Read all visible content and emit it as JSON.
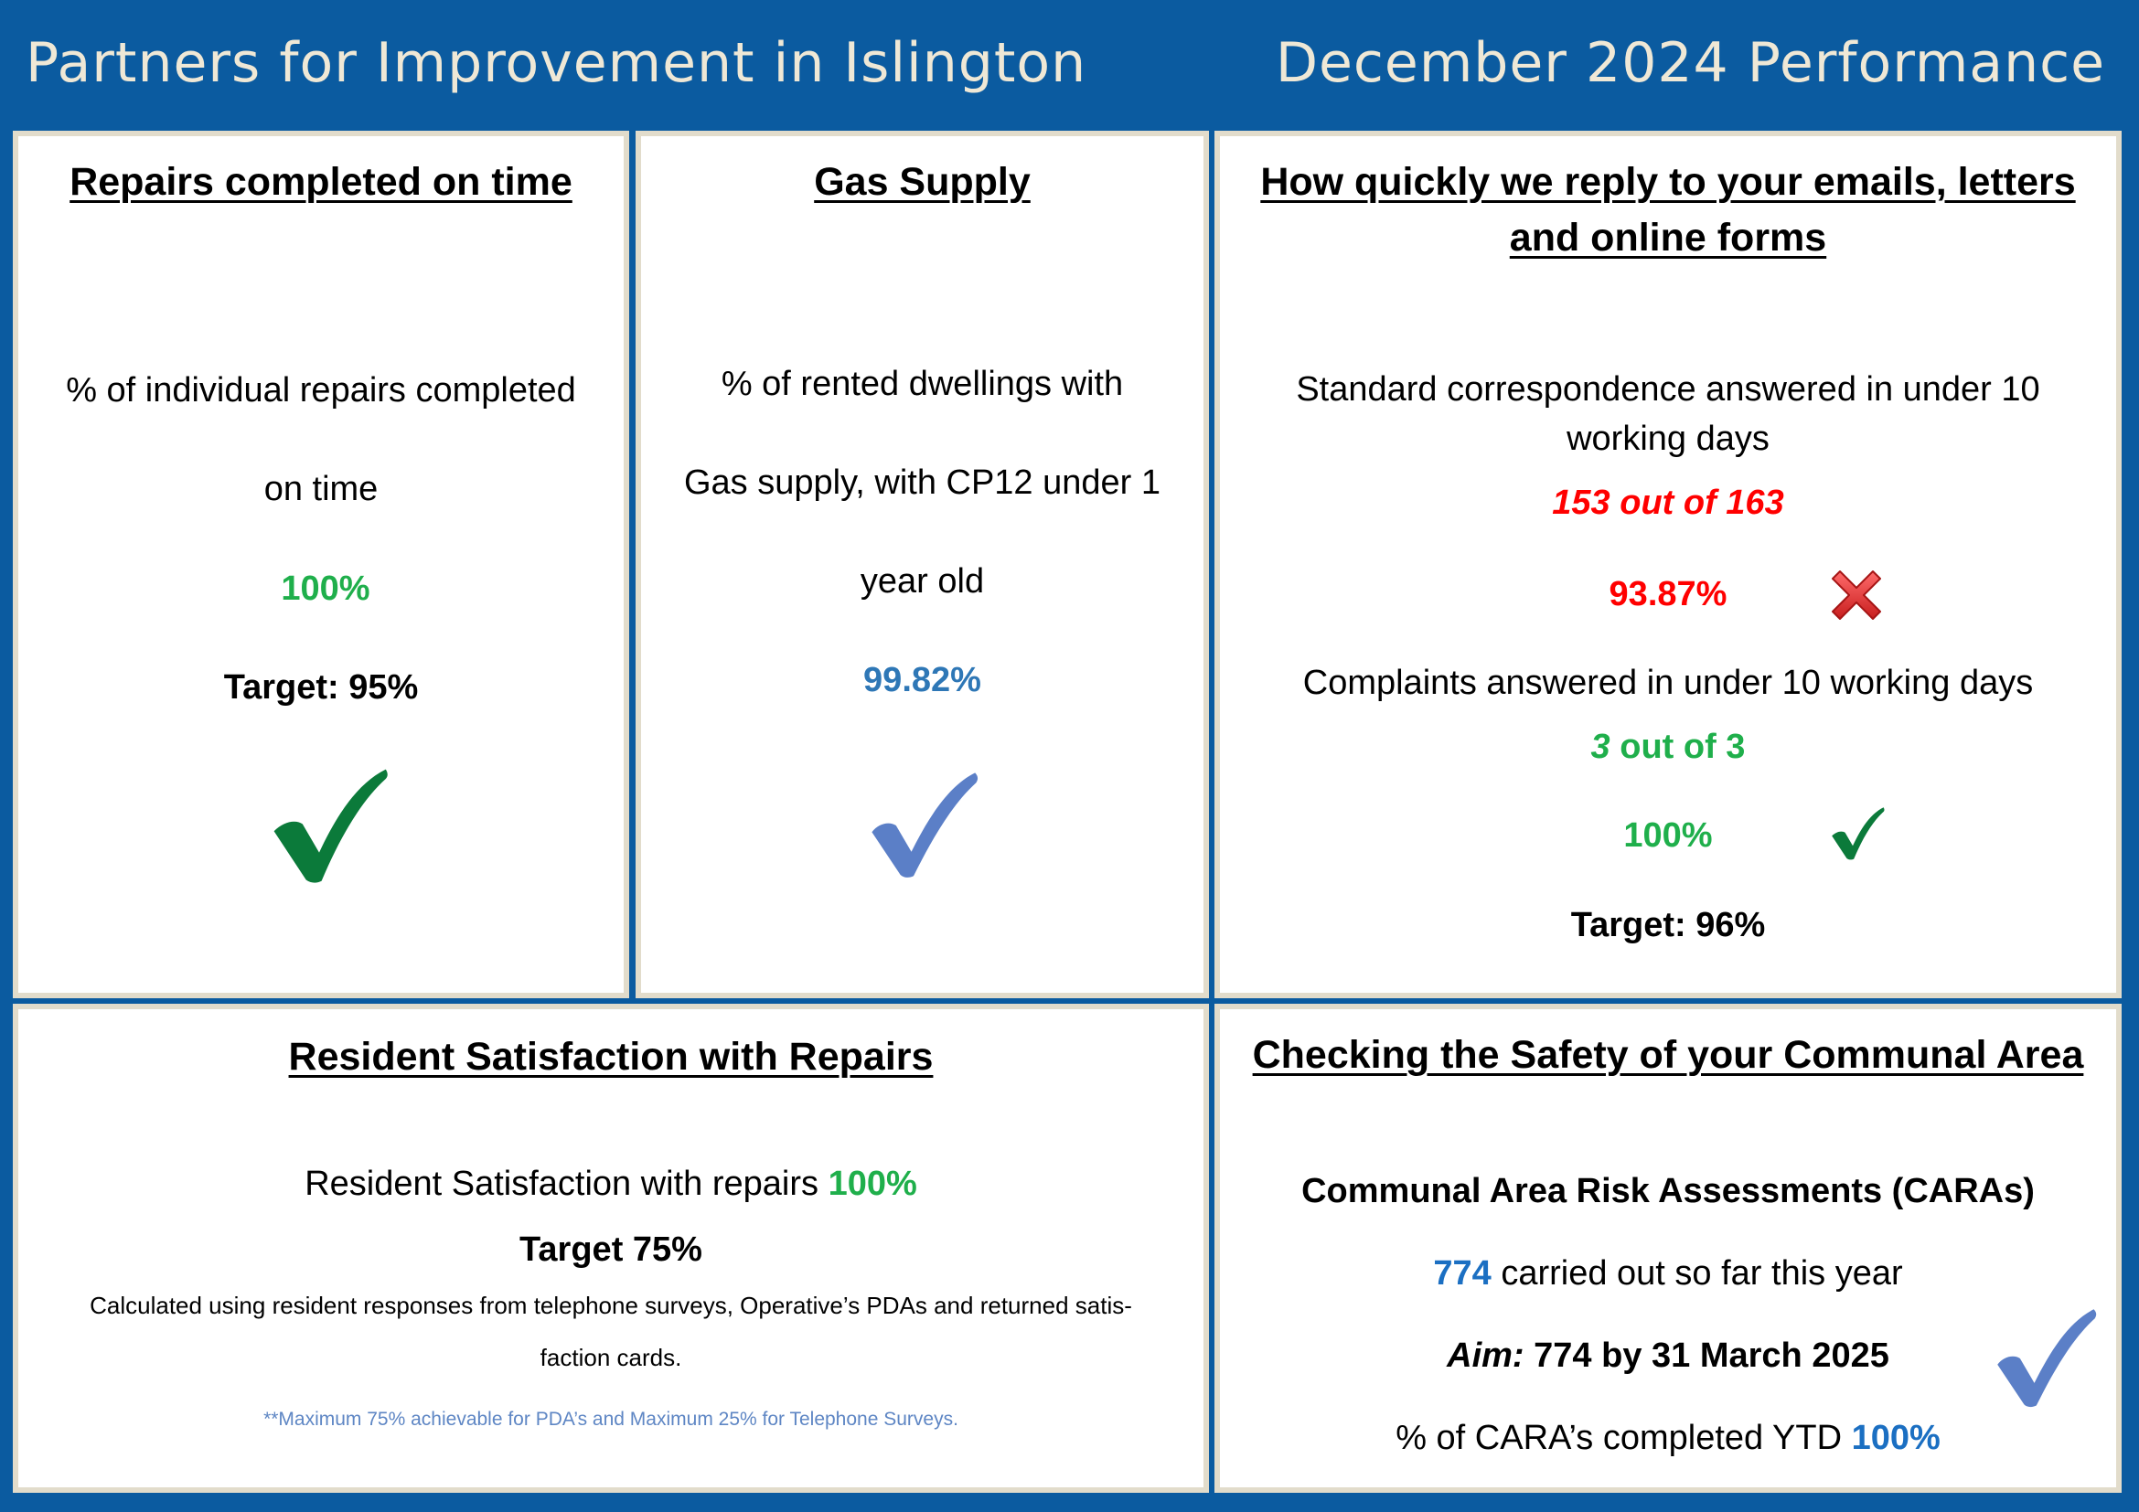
{
  "header": {
    "title": "Partners for Improvement in Islington",
    "period": "December 2024 Performance"
  },
  "colors": {
    "background": "#0b5ba0",
    "panel_border": "#e2dccb",
    "green": "#1faf4b",
    "blue": "#2e77b6",
    "red": "#ff0000"
  },
  "repairs": {
    "title": "Repairs completed on time",
    "desc_line1": "% of  individual repairs completed",
    "desc_line2": "on time",
    "value": "100%",
    "target": "Target: 95%",
    "status_icon": "green-check-icon"
  },
  "gas": {
    "title": "Gas Supply",
    "desc_line1": "% of rented dwellings with",
    "desc_line2": "Gas supply, with CP12 under 1",
    "desc_line3": "year old",
    "value": "99.82%",
    "status_icon": "blue-check-icon"
  },
  "reply": {
    "title_line1": "How quickly we reply to your emails, letters",
    "title_line2": "and online forms",
    "standard_line1": "Standard correspondence answered in under 10",
    "standard_line2": "working days",
    "standard_count": "153 out of 163",
    "standard_value": "93.87%",
    "standard_status_icon": "red-cross-icon",
    "complaints_label": "Complaints answered in under 10 working days",
    "complaints_count_a": "3",
    "complaints_count_b": " out of 3",
    "complaints_value": "100%",
    "complaints_status_icon": "green-check-icon",
    "target": "Target: 96%"
  },
  "satisfaction": {
    "title": "Resident Satisfaction with Repairs",
    "line_label": "Resident Satisfaction with repairs ",
    "line_value": "100%",
    "target": "Target 75%",
    "note_line1": "Calculated using resident responses from telephone surveys, Operative’s PDAs and returned satis-",
    "note_line2": "faction cards.",
    "footnote": "**Maximum 75% achievable for PDA’s and Maximum 25% for Telephone Surveys."
  },
  "safety": {
    "title": "Checking the Safety of your Communal Area",
    "subtitle": "Communal Area Risk Assessments (CARAs)",
    "carried_value": "774",
    "carried_label": " carried out so far this year",
    "aim_label": "Aim:",
    "aim_text": " 774 by 31 March 2025",
    "ytd_label": "% of CARA’s completed YTD ",
    "ytd_value": "100%",
    "status_icon": "blue-check-icon"
  }
}
